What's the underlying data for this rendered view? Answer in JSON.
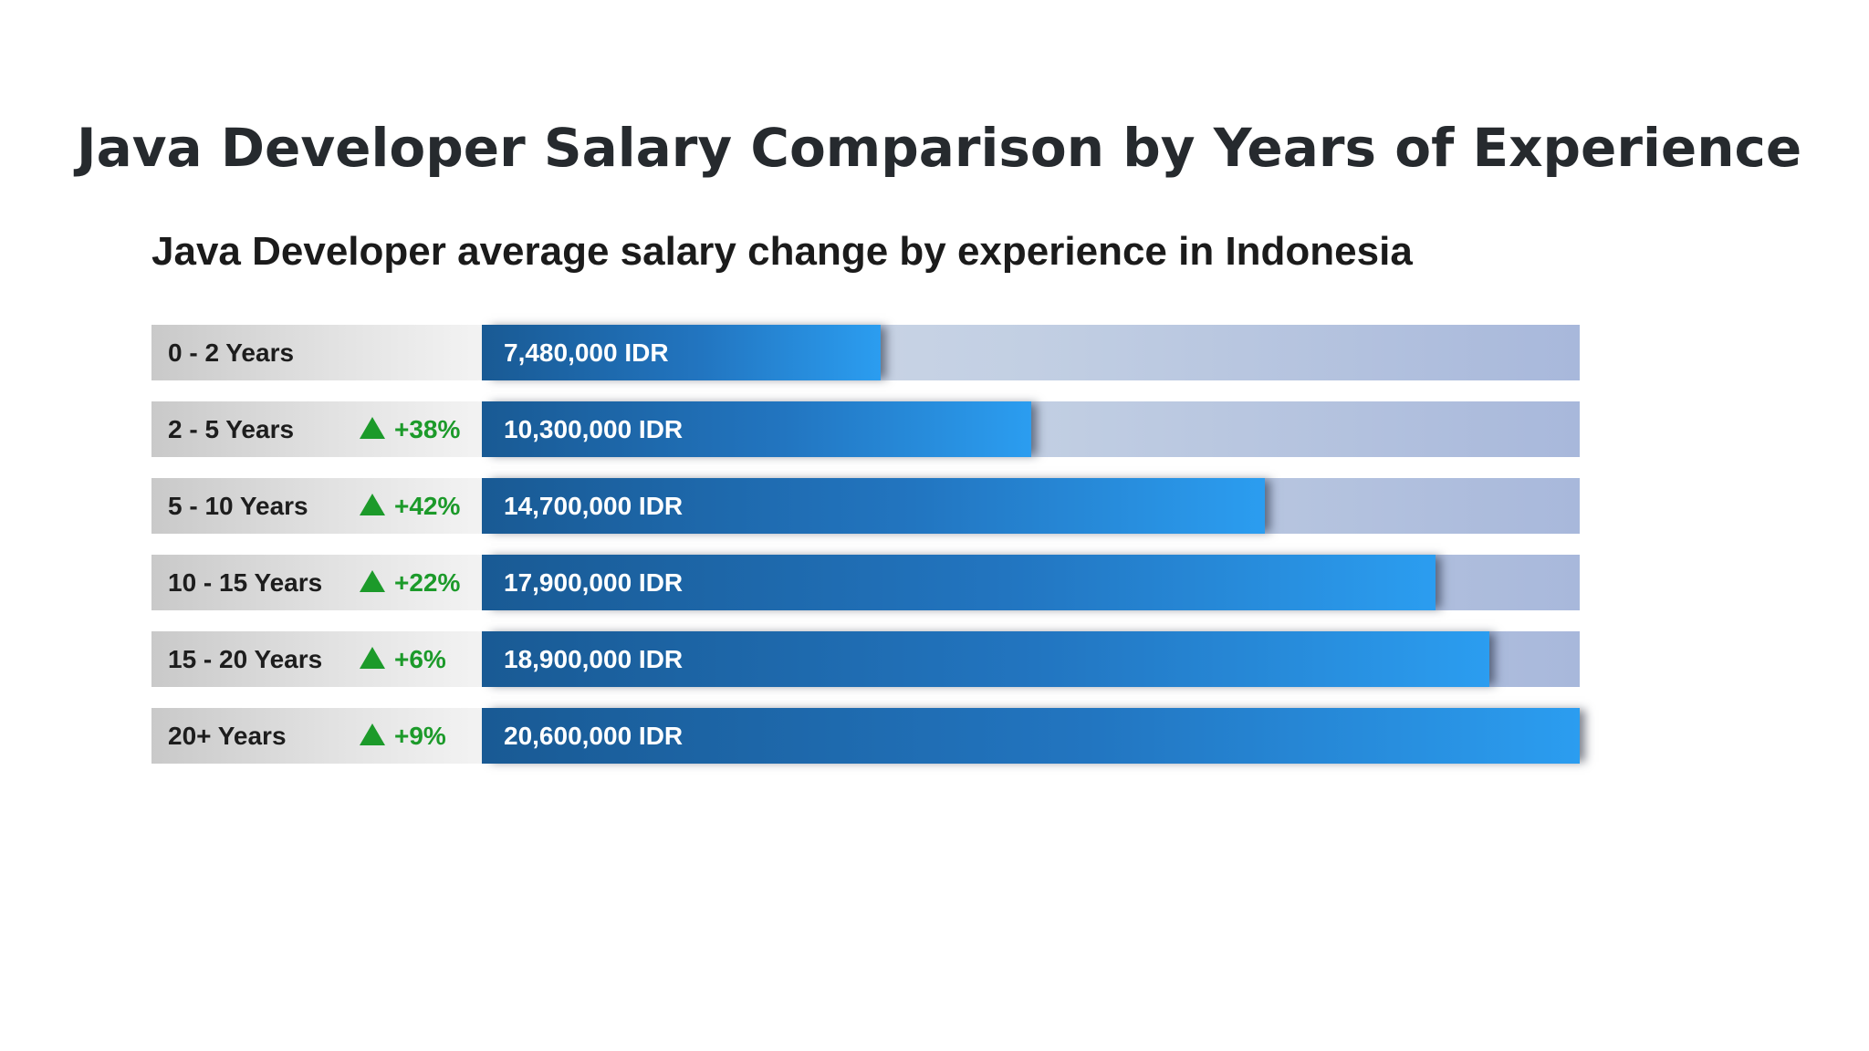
{
  "page": {
    "title": "Java Developer Salary Comparison by Years of Experience"
  },
  "colors": {
    "bar_dark": "#195a94",
    "bar_light": "#2b9df0",
    "track": "#b8c6e0",
    "increase": "#1c9a2a"
  },
  "chart_data": {
    "type": "bar",
    "orientation": "horizontal",
    "title": "Java Developer average salary change by experience in Indonesia",
    "categories": [
      "0 - 2 Years",
      "2 - 5 Years",
      "5 - 10 Years",
      "10 - 15 Years",
      "15 - 20 Years",
      "20+ Years"
    ],
    "values": [
      7480000,
      10300000,
      14700000,
      17900000,
      18900000,
      20600000
    ],
    "value_labels": [
      "7,480,000 IDR",
      "10,300,000 IDR",
      "14,700,000 IDR",
      "17,900,000 IDR",
      "18,900,000 IDR",
      "20,600,000 IDR"
    ],
    "changes": [
      "",
      "+38%",
      "+42%",
      "+22%",
      "+6%",
      "+9%"
    ],
    "unit": "IDR",
    "xlim": [
      0,
      20600000
    ],
    "grid": false,
    "legend": "none"
  }
}
